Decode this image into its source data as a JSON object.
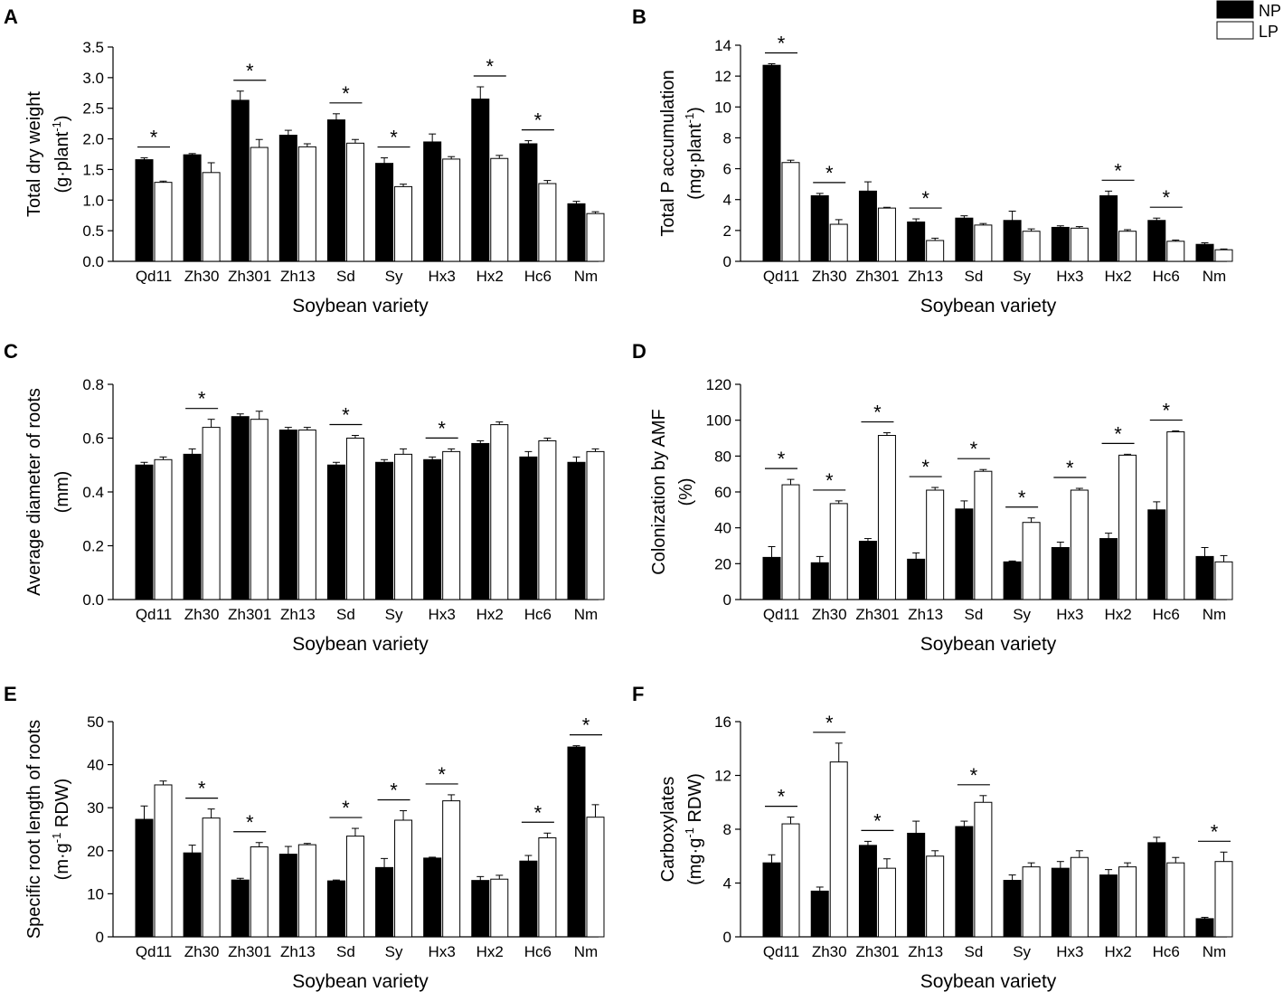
{
  "legend": {
    "entries": [
      {
        "name": "NP",
        "color": "#000000"
      },
      {
        "name": "LP",
        "color": "#ffffff"
      }
    ],
    "placement": "top-right"
  },
  "significance_mark": "*",
  "colors": {
    "np_fill": "#000000",
    "lp_fill": "#ffffff",
    "stroke": "#000000"
  },
  "chart_data": [
    {
      "panel": "A",
      "type": "bar",
      "title": "",
      "ylabel_line1": "Total dry weight",
      "ylabel_line2_base": "(g·plant",
      "ylabel_line2_sup": "-1",
      "ylabel_line2_end": ")",
      "xlabel": "Soybean variety",
      "categories": [
        "Qd11",
        "Zh30",
        "Zh301",
        "Zh13",
        "Sd",
        "Sy",
        "Hx3",
        "Hx2",
        "Hc6",
        "Nm"
      ],
      "series": [
        {
          "name": "NP",
          "values": [
            1.66,
            1.74,
            2.63,
            2.06,
            2.31,
            1.6,
            1.95,
            2.65,
            1.92,
            0.94
          ],
          "errors": [
            0.03,
            0.02,
            0.15,
            0.08,
            0.1,
            0.09,
            0.13,
            0.2,
            0.05,
            0.04
          ]
        },
        {
          "name": "LP",
          "values": [
            1.29,
            1.45,
            1.86,
            1.87,
            1.93,
            1.22,
            1.67,
            1.68,
            1.27,
            0.78
          ],
          "errors": [
            0.02,
            0.16,
            0.13,
            0.05,
            0.06,
            0.04,
            0.04,
            0.05,
            0.05,
            0.03
          ]
        }
      ],
      "significant": [
        true,
        false,
        true,
        false,
        true,
        true,
        false,
        true,
        true,
        false
      ],
      "ylim": [
        0,
        3.5
      ],
      "yticks": [
        "0.0",
        "0.5",
        "1.0",
        "1.5",
        "2.0",
        "2.5",
        "3.0",
        "3.5"
      ]
    },
    {
      "panel": "B",
      "type": "bar",
      "title": "",
      "ylabel_line1": "Total P accumulation",
      "ylabel_line2_base": "(mg·plant",
      "ylabel_line2_sup": "-1",
      "ylabel_line2_end": ")",
      "xlabel": "Soybean variety",
      "categories": [
        "Qd11",
        "Zh30",
        "Zh301",
        "Zh13",
        "Sd",
        "Sy",
        "Hx3",
        "Hx2",
        "Hc6",
        "Nm"
      ],
      "series": [
        {
          "name": "NP",
          "values": [
            12.7,
            4.25,
            4.55,
            2.55,
            2.8,
            2.65,
            2.2,
            4.25,
            2.65,
            1.1
          ],
          "errors": [
            0.1,
            0.15,
            0.6,
            0.2,
            0.15,
            0.6,
            0.1,
            0.3,
            0.15,
            0.1
          ]
        },
        {
          "name": "LP",
          "values": [
            6.4,
            2.4,
            3.45,
            1.35,
            2.35,
            1.95,
            2.15,
            1.95,
            1.3,
            0.75
          ],
          "errors": [
            0.15,
            0.3,
            0.05,
            0.15,
            0.1,
            0.15,
            0.1,
            0.1,
            0.08,
            0.05
          ]
        }
      ],
      "significant": [
        true,
        true,
        false,
        true,
        false,
        false,
        false,
        true,
        true,
        false
      ],
      "ylim": [
        0,
        14
      ],
      "yticks": [
        "0",
        "2",
        "4",
        "6",
        "8",
        "10",
        "12",
        "14"
      ]
    },
    {
      "panel": "C",
      "type": "bar",
      "title": "",
      "ylabel_line1": "Average diameter of roots",
      "ylabel_line2_base": "(mm)",
      "ylabel_line2_sup": "",
      "ylabel_line2_end": "",
      "xlabel": "Soybean variety",
      "categories": [
        "Qd11",
        "Zh30",
        "Zh301",
        "Zh13",
        "Sd",
        "Sy",
        "Hx3",
        "Hx2",
        "Hc6",
        "Nm"
      ],
      "series": [
        {
          "name": "NP",
          "values": [
            0.5,
            0.54,
            0.68,
            0.63,
            0.5,
            0.51,
            0.52,
            0.58,
            0.53,
            0.51
          ],
          "errors": [
            0.01,
            0.02,
            0.01,
            0.01,
            0.01,
            0.01,
            0.01,
            0.01,
            0.02,
            0.02
          ]
        },
        {
          "name": "LP",
          "values": [
            0.52,
            0.64,
            0.67,
            0.63,
            0.6,
            0.54,
            0.55,
            0.65,
            0.59,
            0.55
          ],
          "errors": [
            0.01,
            0.03,
            0.03,
            0.01,
            0.01,
            0.02,
            0.01,
            0.01,
            0.01,
            0.01
          ]
        }
      ],
      "significant": [
        false,
        true,
        false,
        false,
        true,
        false,
        true,
        false,
        false,
        false
      ],
      "ylim": [
        0,
        0.8
      ],
      "yticks": [
        "0.0",
        "0.2",
        "0.4",
        "0.6",
        "0.8"
      ]
    },
    {
      "panel": "D",
      "type": "bar",
      "title": "",
      "ylabel_line1": "Colonization by AMF",
      "ylabel_line2_base": "(%)",
      "ylabel_line2_sup": "",
      "ylabel_line2_end": "",
      "xlabel": "Soybean variety",
      "categories": [
        "Qd11",
        "Zh30",
        "Zh301",
        "Zh13",
        "Sd",
        "Sy",
        "Hx3",
        "Hx2",
        "Hc6",
        "Nm"
      ],
      "series": [
        {
          "name": "NP",
          "values": [
            23.5,
            20.5,
            32.5,
            22.5,
            50.5,
            21,
            29,
            34,
            50,
            24
          ],
          "errors": [
            6,
            3.5,
            1.5,
            3.5,
            4.5,
            0.5,
            3,
            3,
            4.5,
            5
          ]
        },
        {
          "name": "LP",
          "values": [
            64,
            53.5,
            91.5,
            61,
            71.5,
            43,
            61,
            80.5,
            93.5,
            21
          ],
          "errors": [
            3,
            1.5,
            1.5,
            1.5,
            1,
            2.5,
            1,
            0.5,
            0.5,
            3.5
          ]
        }
      ],
      "significant": [
        true,
        true,
        true,
        true,
        true,
        true,
        true,
        true,
        true,
        false
      ],
      "ylim": [
        0,
        120
      ],
      "yticks": [
        "0",
        "20",
        "40",
        "60",
        "80",
        "100",
        "120"
      ]
    },
    {
      "panel": "E",
      "type": "bar",
      "title": "",
      "ylabel_line1": "Specific root length of roots",
      "ylabel_line2_base": "(m·g",
      "ylabel_line2_sup": "-1",
      "ylabel_line2_end": " RDW)",
      "xlabel": "Soybean variety",
      "categories": [
        "Qd11",
        "Zh30",
        "Zh301",
        "Zh13",
        "Sd",
        "Sy",
        "Hx3",
        "Hx2",
        "Hc6",
        "Nm"
      ],
      "series": [
        {
          "name": "NP",
          "values": [
            27.3,
            19.5,
            13.2,
            19.2,
            13,
            16.1,
            18.3,
            13.1,
            17.6,
            44.1
          ],
          "errors": [
            3.1,
            1.8,
            0.4,
            1.8,
            0.2,
            2.1,
            0.2,
            0.9,
            1.3,
            0.3
          ]
        },
        {
          "name": "LP",
          "values": [
            35.3,
            27.6,
            20.9,
            21.4,
            23.4,
            27.1,
            31.6,
            13.4,
            23,
            27.8
          ],
          "errors": [
            0.9,
            2.1,
            1,
            0.3,
            1.8,
            2.2,
            1.4,
            0.9,
            1.1,
            2.9
          ]
        }
      ],
      "significant": [
        false,
        true,
        true,
        false,
        true,
        true,
        true,
        false,
        true,
        true
      ],
      "ylim": [
        0,
        50
      ],
      "yticks": [
        "0",
        "10",
        "20",
        "30",
        "40",
        "50"
      ]
    },
    {
      "panel": "F",
      "type": "bar",
      "title": "",
      "ylabel_line1": "Carboxylates",
      "ylabel_line2_base": "(mg·g",
      "ylabel_line2_sup": "-1",
      "ylabel_line2_end": " RDW)",
      "xlabel": "Soybean variety",
      "categories": [
        "Qd11",
        "Zh30",
        "Zh301",
        "Zh13",
        "Sd",
        "Sy",
        "Hx3",
        "Hx2",
        "Hc6",
        "Nm"
      ],
      "series": [
        {
          "name": "NP",
          "values": [
            5.5,
            3.4,
            6.8,
            7.7,
            8.2,
            4.2,
            5.1,
            4.6,
            7.0,
            1.35
          ],
          "errors": [
            0.6,
            0.3,
            0.3,
            0.9,
            0.4,
            0.4,
            0.5,
            0.4,
            0.4,
            0.1
          ]
        },
        {
          "name": "LP",
          "values": [
            8.4,
            13.0,
            5.1,
            6.0,
            10.0,
            5.2,
            5.9,
            5.2,
            5.5,
            5.6
          ],
          "errors": [
            0.5,
            1.4,
            0.7,
            0.4,
            0.5,
            0.3,
            0.5,
            0.3,
            0.4,
            0.7
          ]
        }
      ],
      "significant": [
        true,
        true,
        true,
        false,
        true,
        false,
        false,
        false,
        false,
        true
      ],
      "ylim": [
        0,
        16
      ],
      "yticks": [
        "0",
        "4",
        "8",
        "12",
        "16"
      ]
    }
  ]
}
